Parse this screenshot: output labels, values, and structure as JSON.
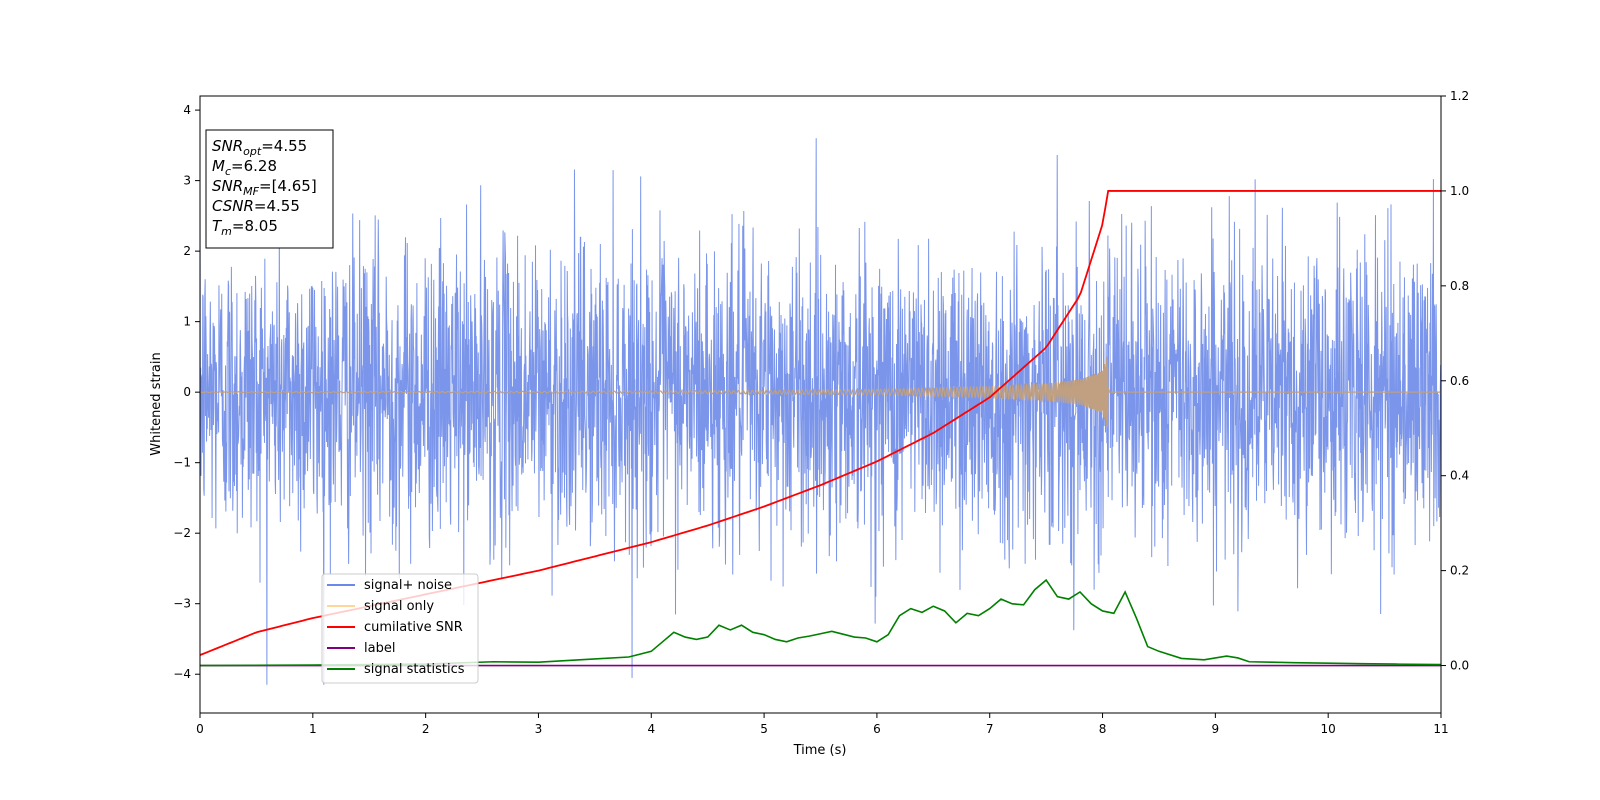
{
  "chart_data": {
    "type": "line",
    "xlabel": "Time (s)",
    "ylabel": "Whitened strain",
    "xlim": [
      0,
      11
    ],
    "ylim_left": [
      -4.55,
      4.2
    ],
    "ylim_right": [
      -0.1,
      1.2
    ],
    "x_ticks": [
      "0",
      "1",
      "2",
      "3",
      "4",
      "5",
      "6",
      "7",
      "8",
      "9",
      "10",
      "11"
    ],
    "y_ticks_left": [
      "−4",
      "−3",
      "−2",
      "−1",
      "0",
      "1",
      "2",
      "3",
      "4"
    ],
    "y_ticks_right": [
      "0.0",
      "0.2",
      "0.4",
      "0.6",
      "0.8",
      "1.0",
      "1.2"
    ],
    "annotation": {
      "lines": [
        {
          "sym": "SNR",
          "sub": "opt",
          "value": "=4.55"
        },
        {
          "sym": "M",
          "sub": "c",
          "value": "=6.28"
        },
        {
          "sym": "SNR",
          "sub": "MF",
          "value": "=[4.65]"
        },
        {
          "sym": "CSNR",
          "sub": "",
          "value": "=4.55"
        },
        {
          "sym": "T",
          "sub": "m",
          "value": "=8.05"
        }
      ]
    },
    "legend": {
      "position": "lower-left",
      "entries": [
        {
          "label": "signal+ noise",
          "color": "#6b89e8"
        },
        {
          "label": "signal only",
          "color": "#ffd699"
        },
        {
          "label": "cumilative SNR",
          "color": "#ff0000"
        },
        {
          "label": "label",
          "color": "#800080"
        },
        {
          "label": "signal statistics",
          "color": "#008000"
        }
      ]
    },
    "series": [
      {
        "name": "signal+ noise",
        "axis": "left",
        "color": "#6b89e8",
        "description": "whitened noisy strain, ~unit-variance Gaussian noise spanning about -4.2 to 3.8",
        "peak_max": 3.82,
        "peak_min": -4.15
      },
      {
        "name": "signal only",
        "axis": "left",
        "color": "#c0a080",
        "chirp_end_time": 8.05,
        "final_amplitude": 0.58,
        "envelope_x": [
          0,
          1,
          2,
          3,
          4,
          5,
          6,
          7,
          7.5,
          7.8,
          8.0,
          8.05
        ],
        "envelope_y": [
          0.005,
          0.007,
          0.009,
          0.012,
          0.017,
          0.025,
          0.04,
          0.08,
          0.12,
          0.18,
          0.3,
          0.58
        ]
      },
      {
        "name": "cumilative SNR",
        "axis": "right",
        "color": "#ff0000",
        "x": [
          0,
          0.5,
          1,
          1.5,
          2,
          2.5,
          3,
          3.5,
          4,
          4.5,
          5,
          5.5,
          6,
          6.5,
          7,
          7.5,
          7.8,
          8.0,
          8.05,
          8.06,
          11
        ],
        "y": [
          0.022,
          0.07,
          0.1,
          0.125,
          0.15,
          0.175,
          0.2,
          0.23,
          0.26,
          0.295,
          0.335,
          0.38,
          0.43,
          0.49,
          0.565,
          0.67,
          0.78,
          0.93,
          1.0,
          1.0,
          1.0
        ]
      },
      {
        "name": "label",
        "axis": "right",
        "color": "#800080",
        "x": [
          0,
          11
        ],
        "y": [
          0.0,
          0.0
        ]
      },
      {
        "name": "signal statistics",
        "axis": "right",
        "color": "#008000",
        "x": [
          0,
          1,
          2,
          2.6,
          3,
          3.5,
          3.8,
          4.0,
          4.1,
          4.2,
          4.3,
          4.4,
          4.5,
          4.6,
          4.7,
          4.8,
          4.9,
          5.0,
          5.1,
          5.2,
          5.3,
          5.4,
          5.5,
          5.6,
          5.7,
          5.8,
          5.9,
          6.0,
          6.1,
          6.2,
          6.3,
          6.4,
          6.5,
          6.6,
          6.7,
          6.8,
          6.9,
          7.0,
          7.1,
          7.2,
          7.3,
          7.4,
          7.5,
          7.6,
          7.7,
          7.8,
          7.9,
          8.0,
          8.1,
          8.2,
          8.3,
          8.4,
          8.5,
          8.7,
          8.9,
          9.1,
          9.2,
          9.3,
          9.5,
          9.7,
          10,
          10.3,
          10.6,
          11
        ],
        "y": [
          0.0,
          0.001,
          0.003,
          0.008,
          0.007,
          0.014,
          0.018,
          0.03,
          0.05,
          0.07,
          0.06,
          0.055,
          0.06,
          0.085,
          0.075,
          0.085,
          0.07,
          0.065,
          0.055,
          0.05,
          0.058,
          0.062,
          0.067,
          0.072,
          0.066,
          0.06,
          0.058,
          0.05,
          0.065,
          0.105,
          0.12,
          0.112,
          0.125,
          0.115,
          0.09,
          0.11,
          0.105,
          0.12,
          0.14,
          0.13,
          0.128,
          0.16,
          0.18,
          0.145,
          0.14,
          0.155,
          0.13,
          0.115,
          0.11,
          0.155,
          0.1,
          0.04,
          0.03,
          0.015,
          0.012,
          0.02,
          0.016,
          0.008,
          0.007,
          0.006,
          0.005,
          0.004,
          0.003,
          0.002
        ]
      }
    ]
  }
}
